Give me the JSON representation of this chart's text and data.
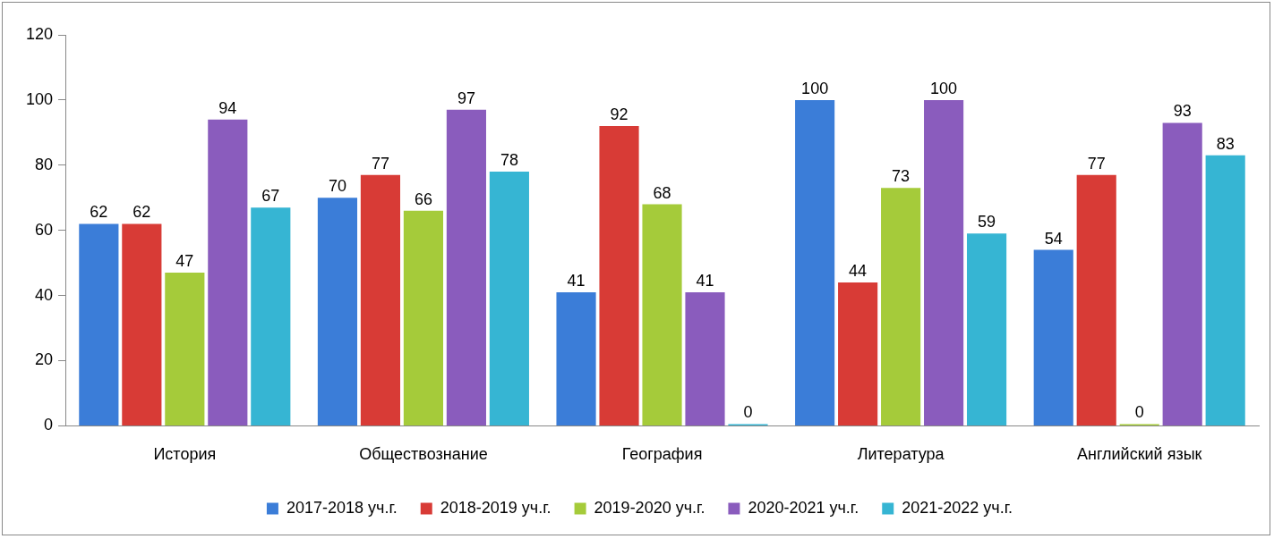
{
  "chart_data": {
    "type": "bar",
    "categories": [
      "История",
      "Обществознание",
      "География",
      "Литература",
      "Английский язык"
    ],
    "series": [
      {
        "name": "2017-2018 уч.г.",
        "color": "#3b7dd8",
        "values": [
          62,
          70,
          41,
          100,
          54
        ]
      },
      {
        "name": "2018-2019 уч.г.",
        "color": "#d83b36",
        "values": [
          62,
          77,
          92,
          44,
          77
        ]
      },
      {
        "name": "2019-2020 уч.г.",
        "color": "#a5cb3a",
        "values": [
          47,
          66,
          68,
          73,
          0
        ]
      },
      {
        "name": "2020-2021 уч.г.",
        "color": "#8a5cbd",
        "values": [
          94,
          97,
          41,
          100,
          93
        ]
      },
      {
        "name": "2021-2022 уч.г.",
        "color": "#36b5d3",
        "values": [
          67,
          78,
          0,
          59,
          83
        ]
      }
    ],
    "ylim": [
      0,
      120
    ],
    "yticks": [
      0,
      20,
      40,
      60,
      80,
      100,
      120
    ],
    "grid": false,
    "legend": "bottom",
    "data_labels": true
  }
}
